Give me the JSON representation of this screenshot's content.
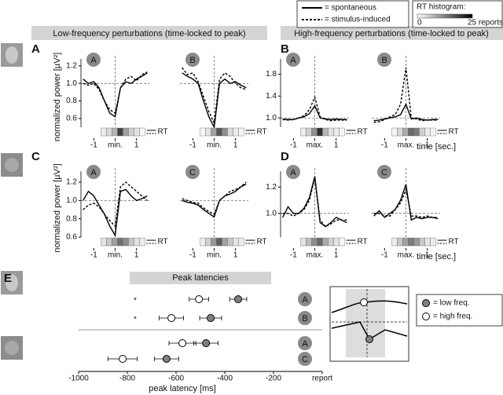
{
  "figure": {
    "panels": [
      "A",
      "B",
      "C",
      "D",
      "E"
    ],
    "headers": [
      "Low-frequency perturbations (time-locked to peak)",
      "High-frequency perturbations (time-locked to peak)"
    ],
    "legend": [
      {
        "label": "= spontaneous",
        "dash": false
      },
      {
        "label": "= stimulus-induced",
        "dash": true
      }
    ],
    "rt_legend": {
      "title": "RT histogram:",
      "ticks": [
        0,
        {
          "value": 25,
          "label": "25 reports"
        }
      ]
    }
  },
  "chart_data": [
    {
      "type": "line",
      "head": "A",
      "ylabel": "normalized power [µV²]",
      "rt_label": "RT",
      "x": [
        -1.5,
        -1.25,
        -1,
        -0.75,
        -0.5,
        -0.25,
        0,
        0.25,
        0.5,
        0.75,
        1,
        1.25,
        1.5
      ],
      "xlim": [
        -1.6,
        1.6
      ],
      "xticks": [
        -1,
        {
          "value": 0,
          "label": "min."
        },
        1
      ],
      "ylim": [
        0.5,
        1.28
      ],
      "yticks": [
        {
          "value": 0.6,
          "label": "0.6"
        },
        {
          "value": 0.8,
          "label": "0.8"
        },
        {
          "value": 1,
          "label": "1.0"
        },
        {
          "value": 1.2,
          "label": "1.2"
        }
      ],
      "ref_x": 0,
      "ref_y": 1,
      "series": [
        {
          "dash": false,
          "values": [
            1.05,
            1.0,
            1.02,
            0.95,
            0.8,
            0.66,
            0.62,
            0.95,
            1.02,
            1.0,
            1.05,
            1.08,
            1.12
          ]
        },
        {
          "dash": true,
          "values": [
            1.0,
            0.98,
            1.0,
            0.93,
            0.8,
            0.7,
            0.66,
            0.95,
            1.05,
            1.08,
            1.03,
            1.1,
            1.13
          ]
        }
      ],
      "rt_hist": [
        2,
        4,
        8,
        20,
        10,
        5,
        3,
        1
      ]
    },
    {
      "type": "line",
      "head": "B",
      "rt_label": "RT",
      "x": [
        -1.5,
        -1.25,
        -1,
        -0.75,
        -0.5,
        -0.25,
        0,
        0.25,
        0.5,
        0.75,
        1,
        1.25,
        1.5
      ],
      "xlim": [
        -1.6,
        1.6
      ],
      "xticks": [
        -1,
        {
          "value": 0,
          "label": "min."
        },
        1
      ],
      "ylim": [
        0.5,
        1.28
      ],
      "ref_x": 0,
      "ref_y": 1,
      "series": [
        {
          "dash": false,
          "values": [
            1.12,
            1.08,
            1.05,
            1.0,
            0.8,
            0.62,
            0.5,
            1.0,
            1.05,
            1.0,
            1.02,
            0.98,
            0.95
          ]
        },
        {
          "dash": true,
          "values": [
            1.18,
            1.1,
            1.12,
            1.02,
            0.85,
            0.68,
            0.55,
            1.05,
            1.12,
            1.08,
            1.0,
            0.95,
            0.93
          ]
        }
      ],
      "rt_hist": [
        1,
        3,
        10,
        18,
        12,
        4,
        2,
        1
      ]
    },
    {
      "type": "line",
      "head": "A",
      "rt_label": "RT",
      "x": [
        -1.5,
        -1.25,
        -1,
        -0.75,
        -0.5,
        -0.25,
        0,
        0.25,
        0.5,
        0.75,
        1,
        1.25,
        1.5
      ],
      "xlim": [
        -1.6,
        1.6
      ],
      "xticks": [
        -1,
        {
          "value": 0,
          "label": "max."
        },
        1
      ],
      "ylim": [
        0.83,
        2.08
      ],
      "yticks": [
        {
          "value": 1,
          "label": "1.0"
        },
        1.4,
        1.8
      ],
      "ref_x": 0,
      "ref_y": 1,
      "series": [
        {
          "dash": false,
          "values": [
            0.98,
            0.97,
            0.97,
            1.0,
            1.02,
            1.08,
            1.22,
            1.0,
            0.98,
            0.97,
            0.98,
            0.97,
            0.97
          ]
        },
        {
          "dash": true,
          "values": [
            0.97,
            0.96,
            0.97,
            1.0,
            1.04,
            1.15,
            1.38,
            1.02,
            0.97,
            0.95,
            0.96,
            0.96,
            0.96
          ]
        }
      ],
      "rt_hist": [
        2,
        5,
        12,
        22,
        8,
        3,
        2,
        1
      ]
    },
    {
      "type": "line",
      "head": "B",
      "rt_label": "RT",
      "x": [
        -1.5,
        -1.25,
        -1,
        -0.75,
        -0.5,
        -0.25,
        0,
        0.25,
        0.5,
        0.75,
        1,
        1.25,
        1.5
      ],
      "xlim": [
        -1.6,
        1.6
      ],
      "xticks": [
        -1,
        {
          "value": 0,
          "label": "max."
        },
        1
      ],
      "ylim": [
        0.83,
        2.08
      ],
      "ref_x": 0,
      "ref_y": 1,
      "xlabel": "time [sec.]",
      "series": [
        {
          "dash": false,
          "values": [
            0.95,
            0.96,
            0.98,
            1.0,
            1.02,
            1.06,
            1.25,
            0.98,
            1.0,
            0.97,
            0.96,
            0.97,
            0.97
          ]
        },
        {
          "dash": true,
          "values": [
            0.92,
            0.93,
            0.97,
            1.02,
            1.06,
            1.25,
            1.92,
            1.0,
            0.98,
            0.95,
            0.96,
            0.96,
            0.96
          ]
        }
      ],
      "rt_hist": [
        1,
        4,
        9,
        16,
        14,
        5,
        2,
        1
      ]
    },
    {
      "type": "line",
      "head": "A",
      "ylabel": "normalized power [µV²]",
      "rt_label": "RT",
      "x": [
        -1.5,
        -1.25,
        -1,
        -0.75,
        -0.5,
        -0.25,
        0,
        0.25,
        0.5,
        0.75,
        1,
        1.25,
        1.5
      ],
      "xlim": [
        -1.6,
        1.6
      ],
      "xticks": [
        -1,
        {
          "value": 0,
          "label": "min."
        },
        1
      ],
      "ylim": [
        0.6,
        1.32
      ],
      "yticks": [
        {
          "value": 0.6,
          "label": "0.6"
        },
        {
          "value": 0.8,
          "label": "0.8"
        },
        {
          "value": 1,
          "label": "1.0"
        },
        {
          "value": 1.2,
          "label": "1.2"
        }
      ],
      "ref_x": 0,
      "ref_y": 1,
      "series": [
        {
          "dash": false,
          "values": [
            1.0,
            1.1,
            1.05,
            0.95,
            0.85,
            0.72,
            0.62,
            1.1,
            1.12,
            1.05,
            1.0,
            1.02,
            1.05
          ]
        },
        {
          "dash": true,
          "values": [
            0.9,
            0.95,
            0.97,
            0.93,
            0.85,
            0.78,
            0.72,
            1.15,
            1.2,
            1.15,
            1.1,
            1.05,
            1.0
          ]
        }
      ],
      "rt_hist": [
        3,
        6,
        10,
        15,
        12,
        6,
        3,
        2
      ]
    },
    {
      "type": "line",
      "head": "C",
      "rt_label": "RT",
      "x": [
        -1.5,
        -1.25,
        -1,
        -0.75,
        -0.5,
        -0.25,
        0,
        0.25,
        0.5,
        0.75,
        1,
        1.25,
        1.5
      ],
      "xlim": [
        -1.6,
        1.6
      ],
      "xticks": [
        -1,
        {
          "value": 0,
          "label": "min."
        },
        1
      ],
      "ylim": [
        0.6,
        1.32
      ],
      "ref_x": 0,
      "ref_y": 1,
      "series": [
        {
          "dash": false,
          "values": [
            1.0,
            0.98,
            0.97,
            0.95,
            0.9,
            0.86,
            0.82,
            1.0,
            1.05,
            1.07,
            1.1,
            1.15,
            1.18
          ]
        },
        {
          "dash": true,
          "values": [
            1.02,
            1.0,
            0.98,
            0.97,
            0.92,
            0.88,
            0.85,
            1.0,
            1.05,
            1.1,
            1.12,
            1.15,
            1.2
          ]
        }
      ],
      "rt_hist": [
        2,
        5,
        11,
        17,
        10,
        6,
        3,
        2
      ]
    },
    {
      "type": "line",
      "head": "A",
      "rt_label": "RT",
      "x": [
        -1.5,
        -1.25,
        -1,
        -0.75,
        -0.5,
        -0.25,
        0,
        0.25,
        0.5,
        0.75,
        1,
        1.25,
        1.5
      ],
      "xlim": [
        -1.6,
        1.6
      ],
      "xticks": [
        -1,
        {
          "value": 0,
          "label": "max."
        },
        1
      ],
      "ylim": [
        0.82,
        1.32
      ],
      "yticks": [
        {
          "value": 1,
          "label": "1.0"
        },
        {
          "value": 1.2,
          "label": "1.2"
        }
      ],
      "ref_x": 0,
      "ref_y": 1,
      "series": [
        {
          "dash": false,
          "values": [
            0.97,
            1.05,
            1.0,
            1.0,
            1.04,
            1.12,
            1.28,
            0.93,
            0.9,
            0.93,
            0.97,
            0.95,
            0.93
          ]
        },
        {
          "dash": true,
          "values": [
            1.0,
            1.0,
            0.98,
            1.0,
            1.03,
            1.1,
            1.27,
            0.95,
            0.9,
            0.92,
            0.95,
            0.95,
            0.95
          ]
        }
      ],
      "rt_hist": [
        3,
        7,
        12,
        16,
        9,
        5,
        3,
        1
      ]
    },
    {
      "type": "line",
      "head": "C",
      "rt_label": "RT",
      "x": [
        -1.5,
        -1.25,
        -1,
        -0.75,
        -0.5,
        -0.25,
        0,
        0.25,
        0.5,
        0.75,
        1,
        1.25,
        1.5
      ],
      "xlim": [
        -1.6,
        1.6
      ],
      "xticks": [
        -1,
        {
          "value": 0,
          "label": "max."
        },
        1
      ],
      "ylim": [
        0.82,
        1.32
      ],
      "ref_x": 0,
      "ref_y": 1,
      "xlabel": "time [sec.]",
      "series": [
        {
          "dash": false,
          "values": [
            0.98,
            1.02,
            0.97,
            1.0,
            1.03,
            1.1,
            1.22,
            0.95,
            0.97,
            0.96,
            0.97,
            0.97,
            0.96
          ]
        },
        {
          "dash": true,
          "values": [
            1.0,
            1.0,
            0.98,
            0.98,
            1.03,
            1.08,
            1.18,
            0.98,
            0.98,
            0.97,
            0.98,
            0.97,
            0.97
          ]
        }
      ],
      "rt_hist": [
        2,
        6,
        10,
        14,
        11,
        6,
        3,
        2
      ]
    },
    {
      "type": "scatter",
      "title": "Peak latencies",
      "xlabel": "peak latency [ms]",
      "xlim": [
        -1000,
        0
      ],
      "xticks": [
        -1000,
        -800,
        -600,
        -400,
        -200,
        {
          "value": 0,
          "label": "report"
        }
      ],
      "categories": [
        "A",
        "B",
        "A",
        "C"
      ],
      "markers": [
        "*",
        "*",
        null,
        null
      ],
      "series": [
        {
          "name": "= low freq.",
          "color": "#808080",
          "values": [
            -345,
            -458,
            -477,
            -639
          ],
          "errors": [
            35,
            45,
            50,
            50
          ]
        },
        {
          "name": "= high freq.",
          "color": "#ffffff",
          "values": [
            -506,
            -619,
            -574,
            -819
          ],
          "errors": [
            40,
            50,
            55,
            60
          ]
        }
      ]
    }
  ]
}
